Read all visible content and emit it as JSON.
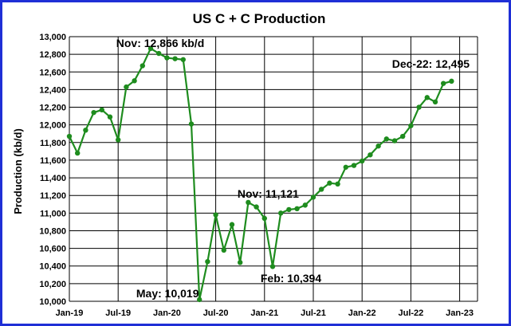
{
  "chart_data": {
    "type": "line",
    "title": "US C + C Production",
    "ylabel": "Production (kb/d)",
    "xlabel": "",
    "ylim": [
      10000,
      13000
    ],
    "yticks": [
      10000,
      10200,
      10400,
      10600,
      10800,
      11000,
      11200,
      11400,
      11600,
      11800,
      12000,
      12200,
      12400,
      12600,
      12800,
      13000
    ],
    "ytick_labels": [
      "10,000",
      "10,200",
      "10,400",
      "10,600",
      "10,800",
      "11,000",
      "11,200",
      "11,400",
      "11,600",
      "11,800",
      "12,000",
      "12,200",
      "12,400",
      "12,600",
      "12,800",
      "13,000"
    ],
    "xticks": [
      {
        "index": 0,
        "label": "Jan-19"
      },
      {
        "index": 6,
        "label": "Jul-19"
      },
      {
        "index": 12,
        "label": "Jan-20"
      },
      {
        "index": 18,
        "label": "Jul-20"
      },
      {
        "index": 24,
        "label": "Jan-21"
      },
      {
        "index": 30,
        "label": "Jul-21"
      },
      {
        "index": 36,
        "label": "Jan-22"
      },
      {
        "index": 42,
        "label": "Jul-22"
      },
      {
        "index": 48,
        "label": "Jan-23"
      }
    ],
    "grid": true,
    "series": [
      {
        "color": "#1e8c1e",
        "x": [
          "Jan-19",
          "Feb-19",
          "Mar-19",
          "Apr-19",
          "May-19",
          "Jun-19",
          "Jul-19",
          "Aug-19",
          "Sep-19",
          "Oct-19",
          "Nov-19",
          "Dec-19",
          "Jan-20",
          "Feb-20",
          "Mar-20",
          "Apr-20",
          "May-20",
          "Jun-20",
          "Jul-20",
          "Aug-20",
          "Sep-20",
          "Oct-20",
          "Nov-20",
          "Dec-20",
          "Jan-21",
          "Feb-21",
          "Mar-21",
          "Apr-21",
          "May-21",
          "Jun-21",
          "Jul-21",
          "Aug-21",
          "Sep-21",
          "Oct-21",
          "Nov-21",
          "Dec-21",
          "Jan-22",
          "Feb-22",
          "Mar-22",
          "Apr-22",
          "May-22",
          "Jun-22",
          "Jul-22",
          "Aug-22",
          "Sep-22",
          "Oct-22",
          "Nov-22",
          "Dec-22"
        ],
        "values": [
          11870,
          11680,
          11940,
          12140,
          12170,
          12090,
          11830,
          12430,
          12500,
          12670,
          12866,
          12810,
          12760,
          12750,
          12740,
          12010,
          10019,
          10450,
          10980,
          10580,
          10870,
          10440,
          11121,
          11070,
          10940,
          10394,
          11000,
          11040,
          11050,
          11090,
          11180,
          11270,
          11340,
          11330,
          11520,
          11540,
          11590,
          11660,
          11760,
          11840,
          11820,
          11870,
          11990,
          12200,
          12310,
          12260,
          12470,
          12495
        ]
      }
    ],
    "annotations": [
      {
        "text": "Nov: 12,866 kb/d",
        "index": 10
      },
      {
        "text": "May: 10,019",
        "index": 16
      },
      {
        "text": "Nov: 11,121",
        "index": 22
      },
      {
        "text": "Feb: 10,394",
        "index": 25
      },
      {
        "text": "Dec-22: 12,495",
        "index": 47
      }
    ]
  }
}
